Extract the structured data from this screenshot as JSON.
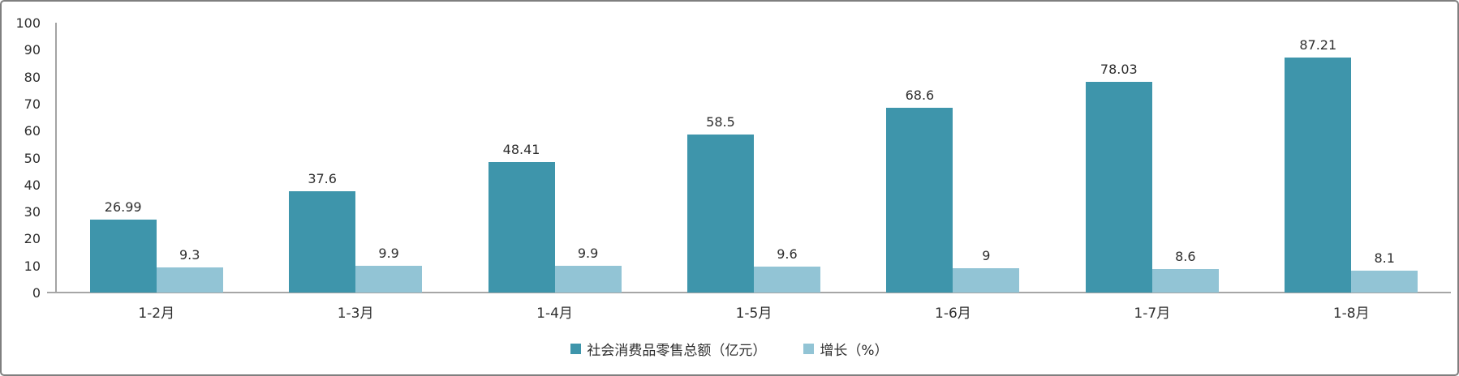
{
  "chart_data": {
    "type": "bar",
    "title": "",
    "categories": [
      "1-2月",
      "1-3月",
      "1-4月",
      "1-5月",
      "1-6月",
      "1-7月",
      "1-8月"
    ],
    "series": [
      {
        "name": "社会消费品零售总额（亿元）",
        "color": "#3e95ab",
        "values": [
          26.99,
          37.6,
          48.41,
          58.5,
          68.6,
          78.03,
          87.21
        ]
      },
      {
        "name": "增长（%）",
        "color": "#92c4d5",
        "values": [
          9.3,
          9.9,
          9.9,
          9.6,
          9,
          8.6,
          8.1
        ]
      }
    ],
    "xlabel": "",
    "ylabel": "",
    "ylim": [
      0,
      100
    ],
    "yticks": [
      0,
      10,
      20,
      30,
      40,
      50,
      60,
      70,
      80,
      90,
      100
    ],
    "grid": false,
    "legend_position": "bottom",
    "data_labels": true
  }
}
